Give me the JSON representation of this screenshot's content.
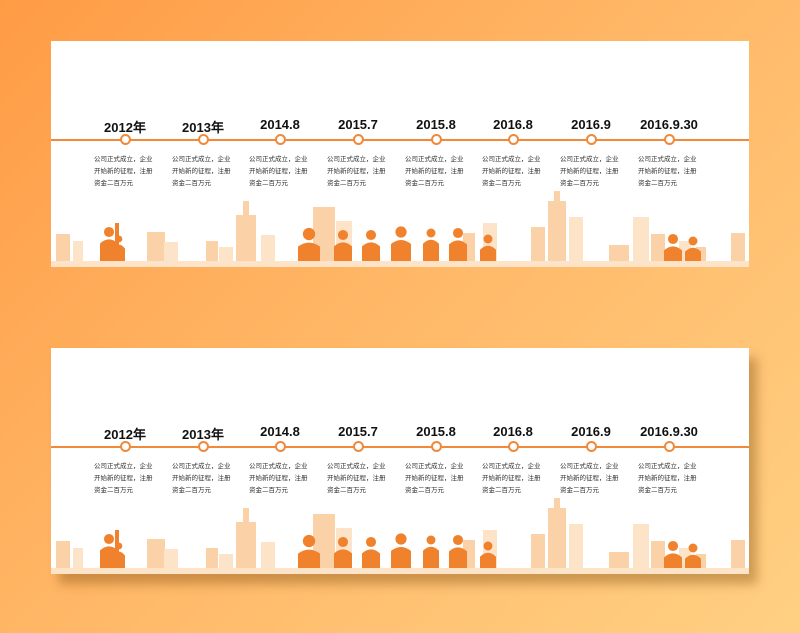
{
  "colors": {
    "accent": "#f08a3a",
    "people": "#f0822e",
    "buildings": "#fbd1a8",
    "buildings_light": "#fde3c8"
  },
  "panels": [
    {
      "name": "panel-top",
      "milestones": [
        {
          "year": "2012年",
          "text": "公司正式成立，企业开始新的征程，注册资金二百万元"
        },
        {
          "year": "2013年",
          "text": "公司正式成立，企业开始新的征程，注册资金二百万元"
        },
        {
          "year": "2014.8",
          "text": "公司正式成立，企业开始新的征程，注册资金二百万元"
        },
        {
          "year": "2015.7",
          "text": "公司正式成立，企业开始新的征程，注册资金二百万元"
        },
        {
          "year": "2015.8",
          "text": "公司正式成立，企业开始新的征程，注册资金二百万元"
        },
        {
          "year": "2016.8",
          "text": "公司正式成立，企业开始新的征程，注册资金二百万元"
        },
        {
          "year": "2016.9",
          "text": "公司正式成立，企业开始新的征程，注册资金二百万元"
        },
        {
          "year": "2016.9.30",
          "text": "公司正式成立，企业开始新的征程，注册资金二百万元"
        }
      ]
    },
    {
      "name": "panel-bottom",
      "milestones": [
        {
          "year": "2012年",
          "text": "公司正式成立，企业开始新的征程，注册资金二百万元"
        },
        {
          "year": "2013年",
          "text": "公司正式成立，企业开始新的征程，注册资金二百万元"
        },
        {
          "year": "2014.8",
          "text": "公司正式成立，企业开始新的征程，注册资金二百万元"
        },
        {
          "year": "2015.7",
          "text": "公司正式成立，企业开始新的征程，注册资金二百万元"
        },
        {
          "year": "2015.8",
          "text": "公司正式成立，企业开始新的征程，注册资金二百万元"
        },
        {
          "year": "2016.8",
          "text": "公司正式成立，企业开始新的征程，注册资金二百万元"
        },
        {
          "year": "2016.9",
          "text": "公司正式成立，企业开始新的征程，注册资金二百万元"
        },
        {
          "year": "2016.9.30",
          "text": "公司正式成立，企业开始新的征程，注册资金二百万元"
        }
      ]
    }
  ]
}
